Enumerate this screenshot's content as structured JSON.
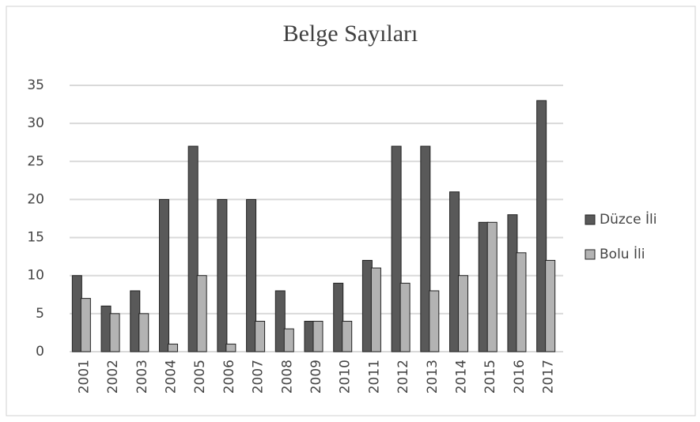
{
  "chart_data": {
    "type": "bar",
    "title": "Belge Sayıları",
    "categories": [
      "2001",
      "2002",
      "2003",
      "2004",
      "2005",
      "2006",
      "2007",
      "2008",
      "2009",
      "2010",
      "2011",
      "2012",
      "2013",
      "2014",
      "2015",
      "2016",
      "2017"
    ],
    "series": [
      {
        "name": "Düzce İli",
        "color": "#595959",
        "values": [
          10,
          6,
          8,
          20,
          27,
          20,
          20,
          8,
          4,
          9,
          12,
          27,
          27,
          21,
          17,
          18,
          33
        ]
      },
      {
        "name": "Bolu İli",
        "color": "#b3b3b3",
        "values": [
          7,
          5,
          5,
          1,
          10,
          1,
          4,
          3,
          4,
          4,
          11,
          9,
          8,
          10,
          17,
          13,
          12
        ]
      }
    ],
    "ylim": [
      0,
      35
    ],
    "yticks": [
      0,
      5,
      10,
      15,
      20,
      25,
      30,
      35
    ],
    "grid": true,
    "legend": "right"
  }
}
